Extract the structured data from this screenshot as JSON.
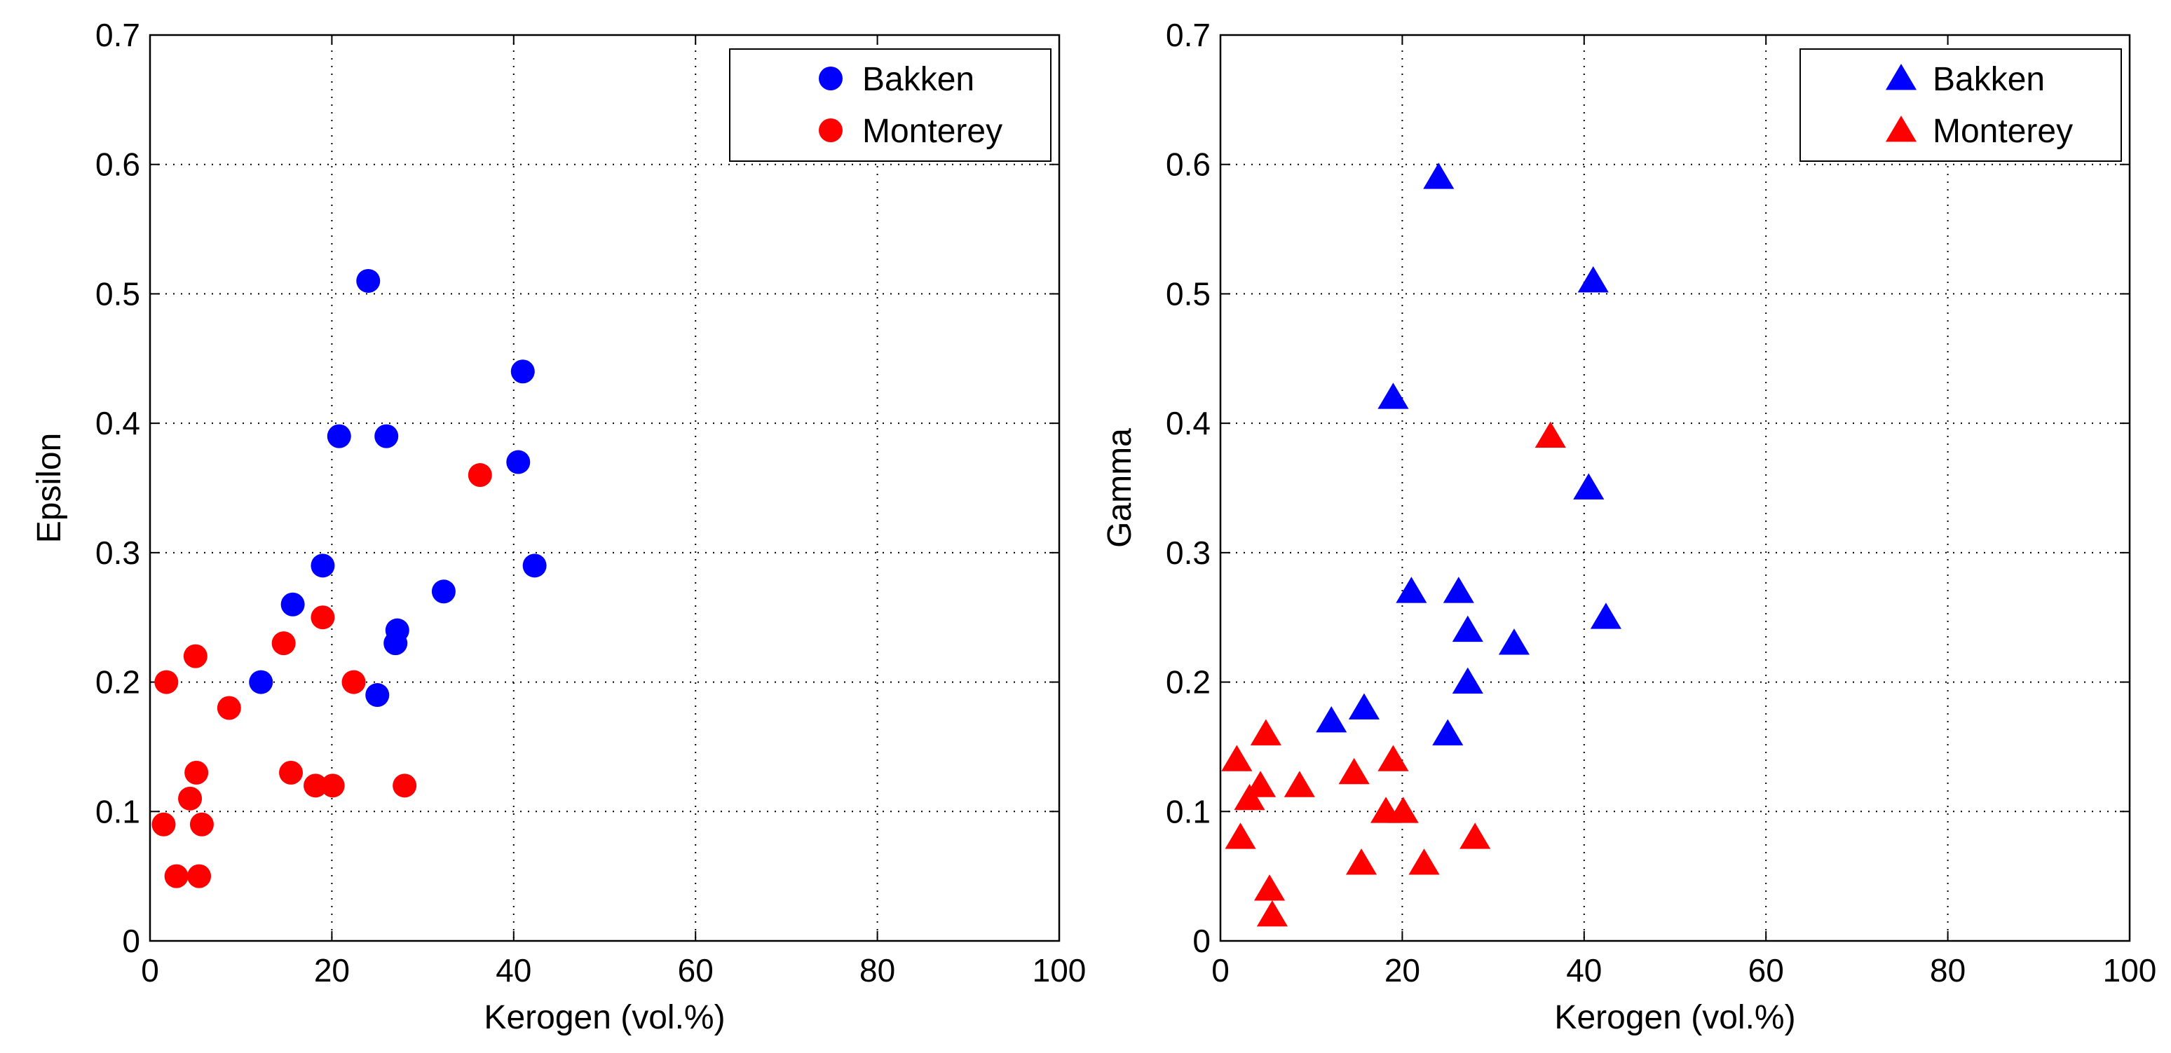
{
  "chart_data": [
    {
      "type": "scatter",
      "title": "",
      "xlabel": "Kerogen (vol.%)",
      "ylabel": "Epsilon",
      "xlim": [
        0,
        100
      ],
      "ylim": [
        0,
        0.7
      ],
      "xticks": [
        "0",
        "20",
        "40",
        "60",
        "80",
        "100"
      ],
      "yticks": [
        "0",
        "0.1",
        "0.2",
        "0.3",
        "0.4",
        "0.5",
        "0.6",
        "0.7"
      ],
      "grid": true,
      "legend_location": "top-right",
      "marker": "circle",
      "series": [
        {
          "name": "Bakken",
          "color": "#0000ff",
          "x": [
            24,
            41,
            20.8,
            26,
            40.5,
            42.3,
            19,
            32.3,
            15.7,
            27.2,
            27,
            12.2,
            25
          ],
          "y": [
            0.51,
            0.44,
            0.39,
            0.39,
            0.37,
            0.29,
            0.29,
            0.27,
            0.26,
            0.24,
            0.23,
            0.2,
            0.19
          ]
        },
        {
          "name": "Monterey",
          "color": "#ff0000",
          "x": [
            36.3,
            19,
            14.7,
            5,
            1.8,
            22.4,
            8.7,
            5.1,
            15.5,
            18.2,
            20.1,
            28,
            4.4,
            1.5,
            5.7,
            2.9,
            5.4
          ],
          "y": [
            0.36,
            0.25,
            0.23,
            0.22,
            0.2,
            0.2,
            0.18,
            0.13,
            0.13,
            0.12,
            0.12,
            0.12,
            0.11,
            0.09,
            0.09,
            0.05,
            0.05
          ]
        }
      ]
    },
    {
      "type": "scatter",
      "title": "",
      "xlabel": "Kerogen (vol.%)",
      "ylabel": "Gamma",
      "xlim": [
        0,
        100
      ],
      "ylim": [
        0,
        0.7
      ],
      "xticks": [
        "0",
        "20",
        "40",
        "60",
        "80",
        "100"
      ],
      "yticks": [
        "0",
        "0.1",
        "0.2",
        "0.3",
        "0.4",
        "0.5",
        "0.6",
        "0.7"
      ],
      "grid": true,
      "legend_location": "top-right",
      "marker": "triangle",
      "series": [
        {
          "name": "Bakken",
          "color": "#0000ff",
          "x": [
            24,
            41,
            19,
            40.5,
            21,
            26.2,
            27.2,
            42.4,
            32.3,
            27.2,
            12.2,
            15.8,
            25
          ],
          "y": [
            0.59,
            0.51,
            0.42,
            0.35,
            0.27,
            0.27,
            0.24,
            0.25,
            0.23,
            0.2,
            0.17,
            0.18,
            0.16
          ]
        },
        {
          "name": "Monterey",
          "color": "#ff0000",
          "x": [
            36.3,
            1.8,
            5,
            19,
            4.4,
            14.7,
            8.7,
            3.2,
            18.2,
            20.1,
            2.2,
            28,
            15.5,
            22.4,
            5.4,
            5.7
          ],
          "y": [
            0.39,
            0.14,
            0.16,
            0.14,
            0.12,
            0.13,
            0.12,
            0.11,
            0.1,
            0.1,
            0.08,
            0.08,
            0.06,
            0.06,
            0.04,
            0.02
          ]
        }
      ]
    }
  ]
}
